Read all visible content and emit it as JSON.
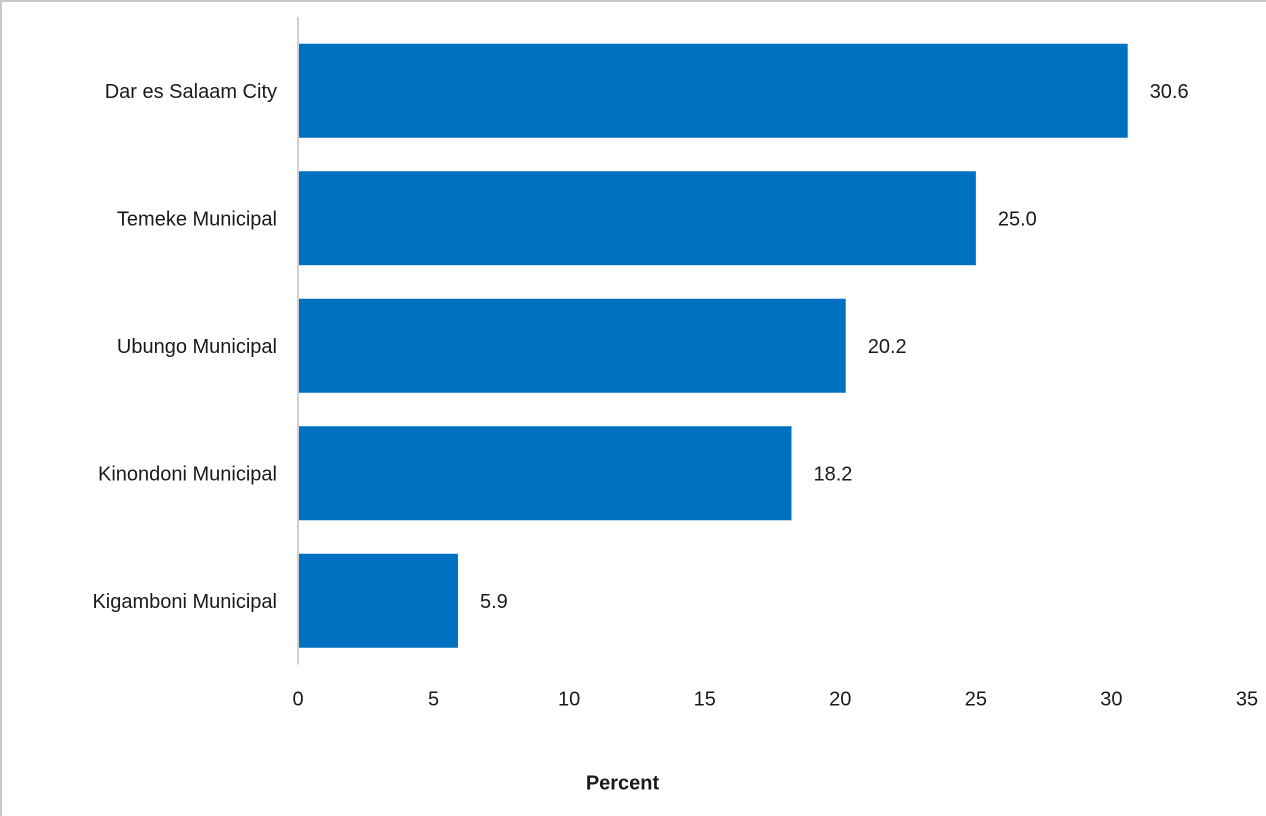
{
  "chart_data": {
    "type": "bar",
    "orientation": "horizontal",
    "categories": [
      "Dar es Salaam City",
      "Temeke Municipal",
      "Ubungo Municipal",
      "Kinondoni Municipal",
      "Kigamboni Municipal"
    ],
    "values": [
      30.6,
      25.0,
      20.2,
      18.2,
      5.9
    ],
    "data_labels": [
      "30.6",
      "25.0",
      "20.2",
      "18.2",
      "5.9"
    ],
    "title": "",
    "xlabel": "Percent",
    "ylabel": "",
    "xlim": [
      0,
      35
    ],
    "xticks": [
      0,
      5,
      10,
      15,
      20,
      25,
      30,
      35
    ],
    "grid": false,
    "legend": "none",
    "bar_color": "#0070c0"
  }
}
